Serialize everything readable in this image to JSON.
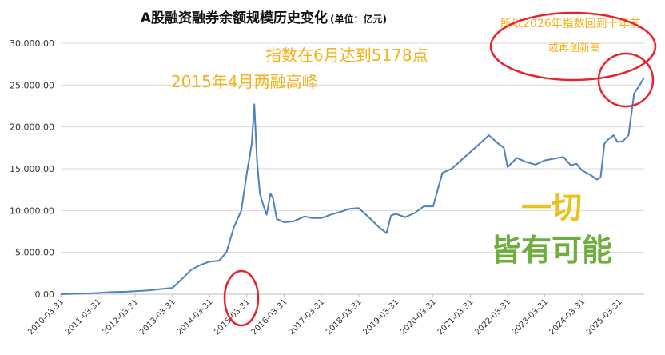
{
  "chart_data": {
    "type": "line",
    "title": "A股融资融券余额规模历史变化",
    "subtitle": "(单位：亿元)",
    "ylim": [
      0,
      30000
    ],
    "yticks": [
      "0.00",
      "5,000.00",
      "10,000.00",
      "15,000.00",
      "20,000.00",
      "25,000.00",
      "30,000.00"
    ],
    "ytick_values": [
      0,
      5000,
      10000,
      15000,
      20000,
      25000,
      30000
    ],
    "xlim": [
      2010.25,
      2025.92
    ],
    "xticks": [
      "2010-03-31",
      "2011-03-31",
      "2012-03-31",
      "2013-03-31",
      "2014-03-31",
      "2015-03-31",
      "2016-03-31",
      "2017-03-31",
      "2018-03-31",
      "2019-03-31",
      "2020-03-31",
      "2021-03-31",
      "2022-03-31",
      "2023-03-31",
      "2024-03-31",
      "2025-03-31"
    ],
    "xtick_values": [
      2010.25,
      2011.25,
      2012.25,
      2013.25,
      2014.25,
      2015.25,
      2016.25,
      2017.25,
      2018.25,
      2019.25,
      2020.25,
      2021.25,
      2022.25,
      2023.25,
      2024.25,
      2025.25
    ],
    "grid": true,
    "line_color": "#4f81bd",
    "points": [
      [
        2010.25,
        0
      ],
      [
        2010.6,
        50
      ],
      [
        2011.0,
        100
      ],
      [
        2011.25,
        150
      ],
      [
        2011.6,
        250
      ],
      [
        2012.0,
        300
      ],
      [
        2012.25,
        350
      ],
      [
        2012.6,
        450
      ],
      [
        2013.0,
        650
      ],
      [
        2013.25,
        750
      ],
      [
        2013.5,
        1800
      ],
      [
        2013.75,
        2900
      ],
      [
        2014.0,
        3500
      ],
      [
        2014.25,
        3900
      ],
      [
        2014.5,
        4000
      ],
      [
        2014.7,
        5000
      ],
      [
        2014.9,
        8000
      ],
      [
        2015.1,
        10000
      ],
      [
        2015.25,
        14500
      ],
      [
        2015.38,
        18000
      ],
      [
        2015.45,
        22700
      ],
      [
        2015.52,
        16000
      ],
      [
        2015.6,
        12000
      ],
      [
        2015.7,
        10500
      ],
      [
        2015.78,
        9500
      ],
      [
        2015.88,
        12000
      ],
      [
        2015.95,
        11500
      ],
      [
        2016.05,
        9000
      ],
      [
        2016.25,
        8600
      ],
      [
        2016.5,
        8700
      ],
      [
        2016.8,
        9300
      ],
      [
        2017.0,
        9100
      ],
      [
        2017.25,
        9100
      ],
      [
        2017.5,
        9500
      ],
      [
        2017.8,
        9900
      ],
      [
        2018.0,
        10200
      ],
      [
        2018.25,
        10300
      ],
      [
        2018.5,
        9300
      ],
      [
        2018.8,
        8000
      ],
      [
        2019.0,
        7300
      ],
      [
        2019.12,
        9400
      ],
      [
        2019.25,
        9600
      ],
      [
        2019.5,
        9200
      ],
      [
        2019.75,
        9700
      ],
      [
        2020.0,
        10500
      ],
      [
        2020.25,
        10500
      ],
      [
        2020.5,
        14500
      ],
      [
        2020.75,
        15000
      ],
      [
        2021.0,
        16000
      ],
      [
        2021.25,
        17000
      ],
      [
        2021.5,
        18000
      ],
      [
        2021.75,
        19000
      ],
      [
        2022.0,
        18000
      ],
      [
        2022.15,
        17500
      ],
      [
        2022.25,
        15200
      ],
      [
        2022.5,
        16300
      ],
      [
        2022.75,
        15800
      ],
      [
        2023.0,
        15500
      ],
      [
        2023.25,
        16000
      ],
      [
        2023.5,
        16200
      ],
      [
        2023.75,
        16400
      ],
      [
        2023.95,
        15400
      ],
      [
        2024.1,
        15600
      ],
      [
        2024.25,
        14800
      ],
      [
        2024.5,
        14200
      ],
      [
        2024.65,
        13700
      ],
      [
        2024.75,
        14000
      ],
      [
        2024.85,
        18000
      ],
      [
        2024.95,
        18500
      ],
      [
        2025.1,
        19000
      ],
      [
        2025.2,
        18200
      ],
      [
        2025.35,
        18300
      ],
      [
        2025.5,
        19000
      ],
      [
        2025.65,
        24000
      ],
      [
        2025.8,
        25000
      ],
      [
        2025.92,
        25900
      ]
    ],
    "annotations": {
      "future": "所以2026年指数回到十年前",
      "future2": "或再创新高",
      "index": "指数在6月达到5178点",
      "peak": "2015年4月两融高峰",
      "slogan1": "一切",
      "slogan2": "皆有可能"
    },
    "highlight_colors": {
      "circle": "#e8232b",
      "annotation": "#f2b21b",
      "slogan1": "#e9c21e",
      "slogan2": "#6fae3e"
    }
  }
}
